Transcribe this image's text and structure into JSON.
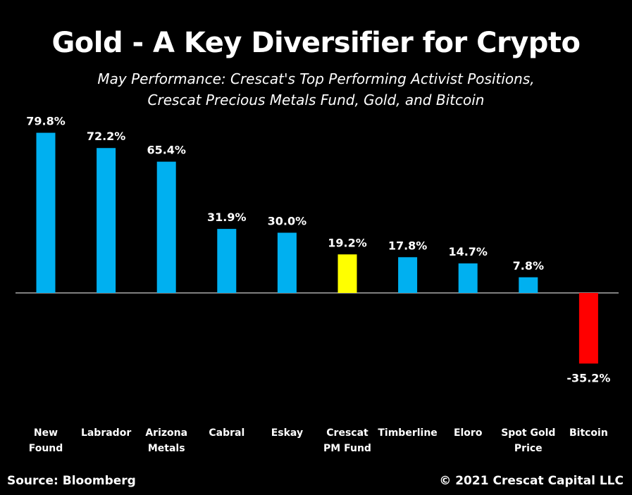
{
  "chart_data": {
    "type": "bar",
    "title": "Gold - A Key Diversifier for Crypto",
    "subtitle_lines": [
      "May Performance: Crescat's Top Performing Activist Positions,",
      "Crescat Precious Metals Fund, Gold, and Bitcoin"
    ],
    "categories": [
      [
        "New",
        "Found"
      ],
      [
        "Labrador"
      ],
      [
        "Arizona",
        "Metals"
      ],
      [
        "Cabral"
      ],
      [
        "Eskay"
      ],
      [
        "Crescat",
        "PM Fund"
      ],
      [
        "Timberline"
      ],
      [
        "Eloro"
      ],
      [
        "Spot Gold",
        "Price"
      ],
      [
        "Bitcoin"
      ]
    ],
    "values": [
      79.8,
      72.2,
      65.4,
      31.9,
      30.0,
      19.2,
      17.8,
      14.7,
      7.8,
      -35.2
    ],
    "value_labels": [
      "79.8%",
      "72.2%",
      "65.4%",
      "31.9%",
      "30.0%",
      "19.2%",
      "17.8%",
      "14.7%",
      "7.8%",
      "-35.2%"
    ],
    "bar_colors": [
      "#00b0f0",
      "#00b0f0",
      "#00b0f0",
      "#00b0f0",
      "#00b0f0",
      "#ffff00",
      "#00b0f0",
      "#00b0f0",
      "#00b0f0",
      "#ff0000"
    ],
    "xlabel": "",
    "ylabel": "",
    "grid": false,
    "legend": "none"
  },
  "footer": {
    "source": "Source: Bloomberg",
    "copyright": "© 2021 Crescat Capital LLC"
  },
  "colors": {
    "background": "#000000",
    "text": "#ffffff",
    "positive_bar": "#00b0f0",
    "highlight_bar": "#ffff00",
    "negative_bar": "#ff0000"
  }
}
